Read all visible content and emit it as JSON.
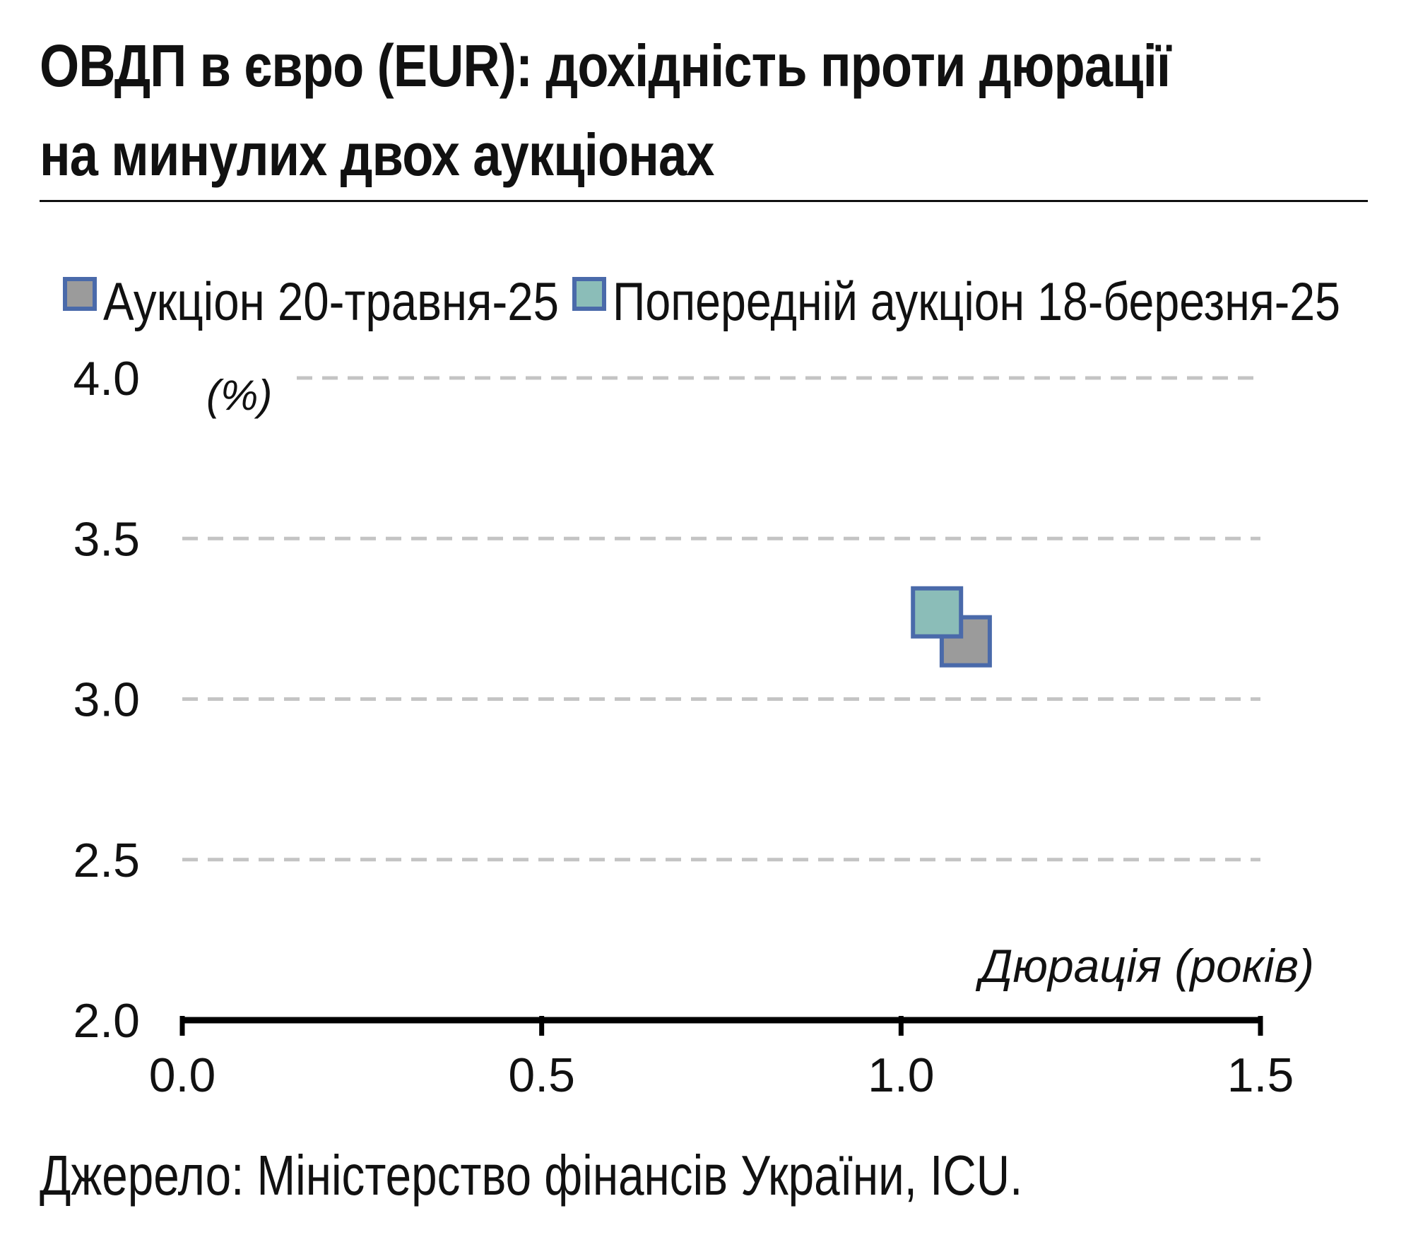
{
  "title_lines": [
    "ОВДП в євро (EUR): дохідність проти дюрації",
    "на минулих двох аукціонах"
  ],
  "source": "Джерело: Міністерство фінансів України, ICU.",
  "chart_data": {
    "type": "scatter",
    "ylabel": "(%)",
    "xlabel": "Дюрація (років)",
    "xlim": [
      0.0,
      1.5
    ],
    "ylim": [
      2.0,
      4.0
    ],
    "x_ticks": [
      "0.0",
      "0.5",
      "1.0",
      "1.5"
    ],
    "y_ticks": [
      "2.0",
      "2.5",
      "3.0",
      "3.5",
      "4.0"
    ],
    "grid": "horizontal dashed",
    "legend_position": "top",
    "series": [
      {
        "name": "Аукціон 20-травня-25",
        "color": "#9b9b9b",
        "edge": "#4a6aaa",
        "points": [
          {
            "x": 1.09,
            "y": 3.18
          }
        ]
      },
      {
        "name": "Попередній аукціон 18-березня-25",
        "color": "#8bbdb8",
        "edge": "#4a6aaa",
        "points": [
          {
            "x": 1.05,
            "y": 3.27
          }
        ]
      }
    ]
  }
}
